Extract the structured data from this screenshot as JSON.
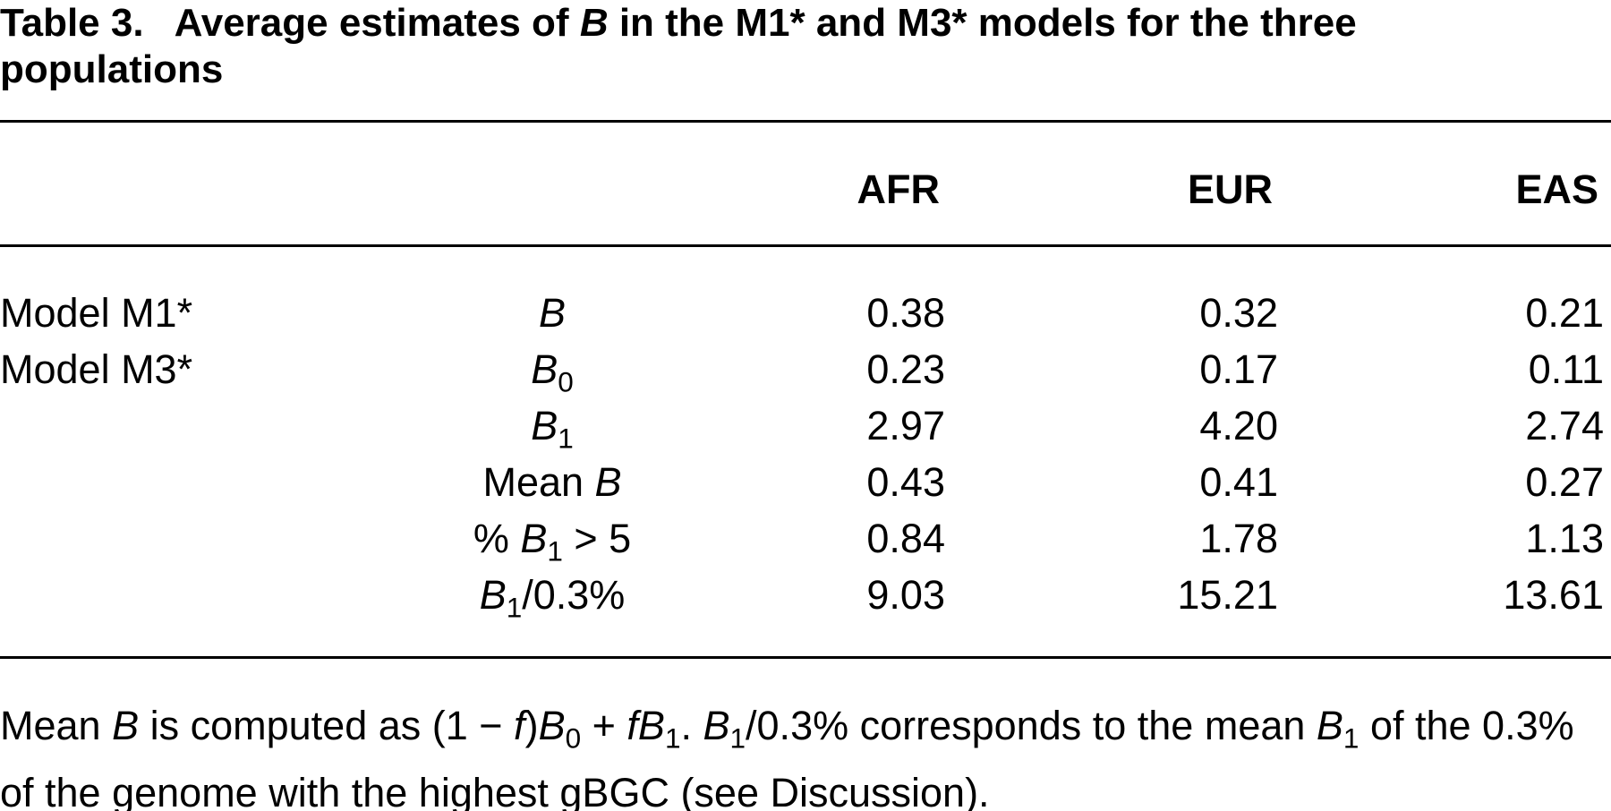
{
  "title": {
    "label": "Table 3.",
    "text": [
      {
        "text": "Average estimates of ",
        "style": "normal"
      },
      {
        "text": "B",
        "style": "italic"
      },
      {
        "text": " in the M1* and M3* models for the three populations",
        "style": "normal"
      }
    ]
  },
  "table": {
    "columns": [
      "AFR",
      "EUR",
      "EAS"
    ],
    "rows": [
      {
        "model": "Model M1*",
        "parameter": [
          {
            "text": "B",
            "style": "italic"
          }
        ],
        "values": [
          "0.38",
          "0.32",
          "0.21"
        ]
      },
      {
        "model": "Model M3*",
        "parameter": [
          {
            "text": "B",
            "style": "italic"
          },
          {
            "text": "0",
            "style": "sub"
          }
        ],
        "values": [
          "0.23",
          "0.17",
          "0.11"
        ]
      },
      {
        "parameter": [
          {
            "text": "B",
            "style": "italic"
          },
          {
            "text": "1",
            "style": "sub"
          }
        ],
        "values": [
          "2.97",
          "4.20",
          "2.74"
        ]
      },
      {
        "parameter": [
          {
            "text": "Mean ",
            "style": "normal"
          },
          {
            "text": "B",
            "style": "italic"
          }
        ],
        "values": [
          "0.43",
          "0.41",
          "0.27"
        ]
      },
      {
        "parameter": [
          {
            "text": "% ",
            "style": "normal"
          },
          {
            "text": "B",
            "style": "italic"
          },
          {
            "text": "1",
            "style": "sub"
          },
          {
            "text": " > 5",
            "style": "normal"
          }
        ],
        "values": [
          "0.84",
          "1.78",
          "1.13"
        ]
      },
      {
        "parameter": [
          {
            "text": "B",
            "style": "italic"
          },
          {
            "text": "1",
            "style": "sub"
          },
          {
            "text": "/0.3%",
            "style": "normal"
          }
        ],
        "values": [
          "9.03",
          "15.21",
          "13.61"
        ]
      }
    ]
  },
  "footnote": [
    {
      "text": "Mean ",
      "style": "normal"
    },
    {
      "text": "B",
      "style": "italic"
    },
    {
      "text": " is computed as (1 − ",
      "style": "normal"
    },
    {
      "text": "f",
      "style": "italic"
    },
    {
      "text": ")",
      "style": "normal"
    },
    {
      "text": "B",
      "style": "italic"
    },
    {
      "text": "0",
      "style": "sub"
    },
    {
      "text": " + ",
      "style": "normal"
    },
    {
      "text": "f",
      "style": "italic"
    },
    {
      "text": "B",
      "style": "italic"
    },
    {
      "text": "1",
      "style": "sub"
    },
    {
      "text": ". ",
      "style": "normal"
    },
    {
      "text": "B",
      "style": "italic"
    },
    {
      "text": "1",
      "style": "sub"
    },
    {
      "text": "/0.3% corresponds to the mean ",
      "style": "normal"
    },
    {
      "text": "B",
      "style": "italic"
    },
    {
      "text": "1",
      "style": "sub"
    },
    {
      "text": " of the 0.3% of the genome with the highest gBGC (see Discussion).",
      "style": "normal"
    }
  ]
}
